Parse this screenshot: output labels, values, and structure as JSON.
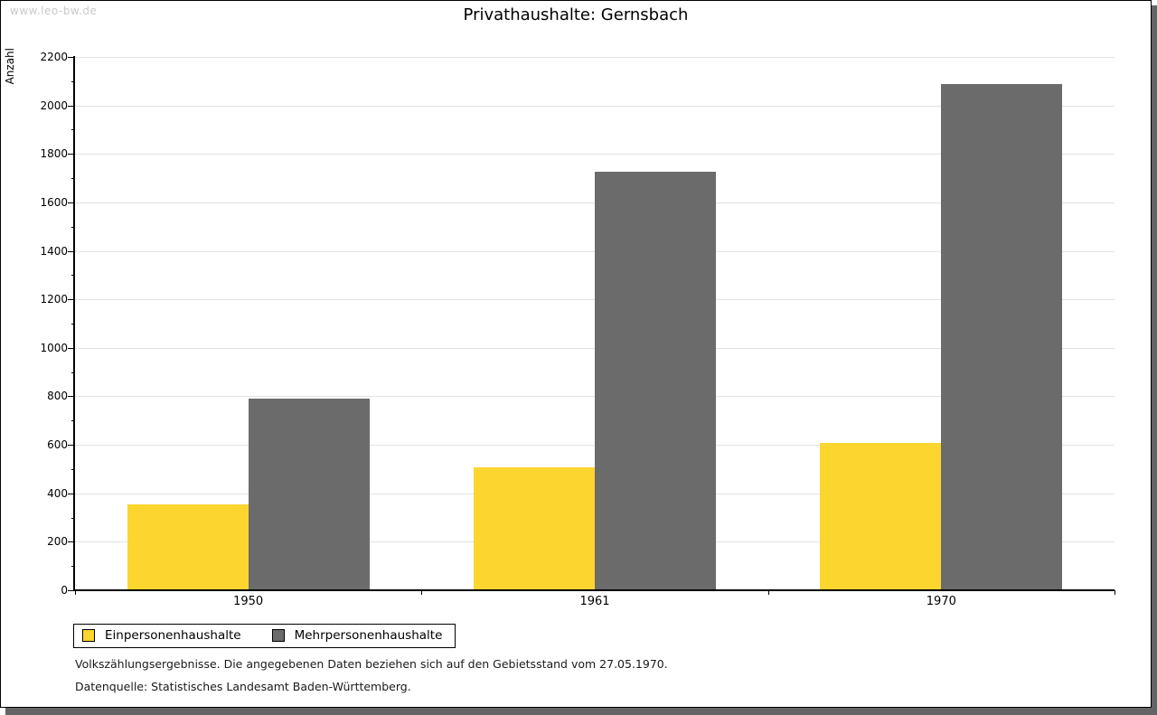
{
  "watermark": "www.leo-bw.de",
  "title": "Privathaushalte: Gernsbach",
  "chart_data": {
    "type": "bar",
    "title": "Privathaushalte: Gernsbach",
    "categories": [
      "1950",
      "1961",
      "1970"
    ],
    "series": [
      {
        "name": "Einpersonenhaushalte",
        "color": "#fdd52f",
        "values": [
          353,
          507,
          608
        ]
      },
      {
        "name": "Mehrpersonenhaushalte",
        "color": "#6b6b6b",
        "values": [
          791,
          1727,
          2087
        ]
      }
    ],
    "xlabel": "",
    "ylabel": "Anzahl",
    "ylim": [
      0,
      2200
    ],
    "ytick_step": 200,
    "yminor_step": 100,
    "grid": true,
    "legend_position": "bottom-left"
  },
  "footnotes": {
    "line1": "Volkszählungsergebnisse. Die angegebenen Daten beziehen sich auf den Gebietsstand vom 27.05.1970.",
    "line2": "Datenquelle: Statistisches Landesamt Baden-Württemberg."
  },
  "colors": {
    "bar_yellow": "#fdd52f",
    "bar_gray": "#6b6b6b",
    "gridline": "#e3e3e3",
    "axis": "#000000",
    "watermark": "#c9c9c9",
    "shadow": "#646464",
    "background": "#ffffff"
  }
}
